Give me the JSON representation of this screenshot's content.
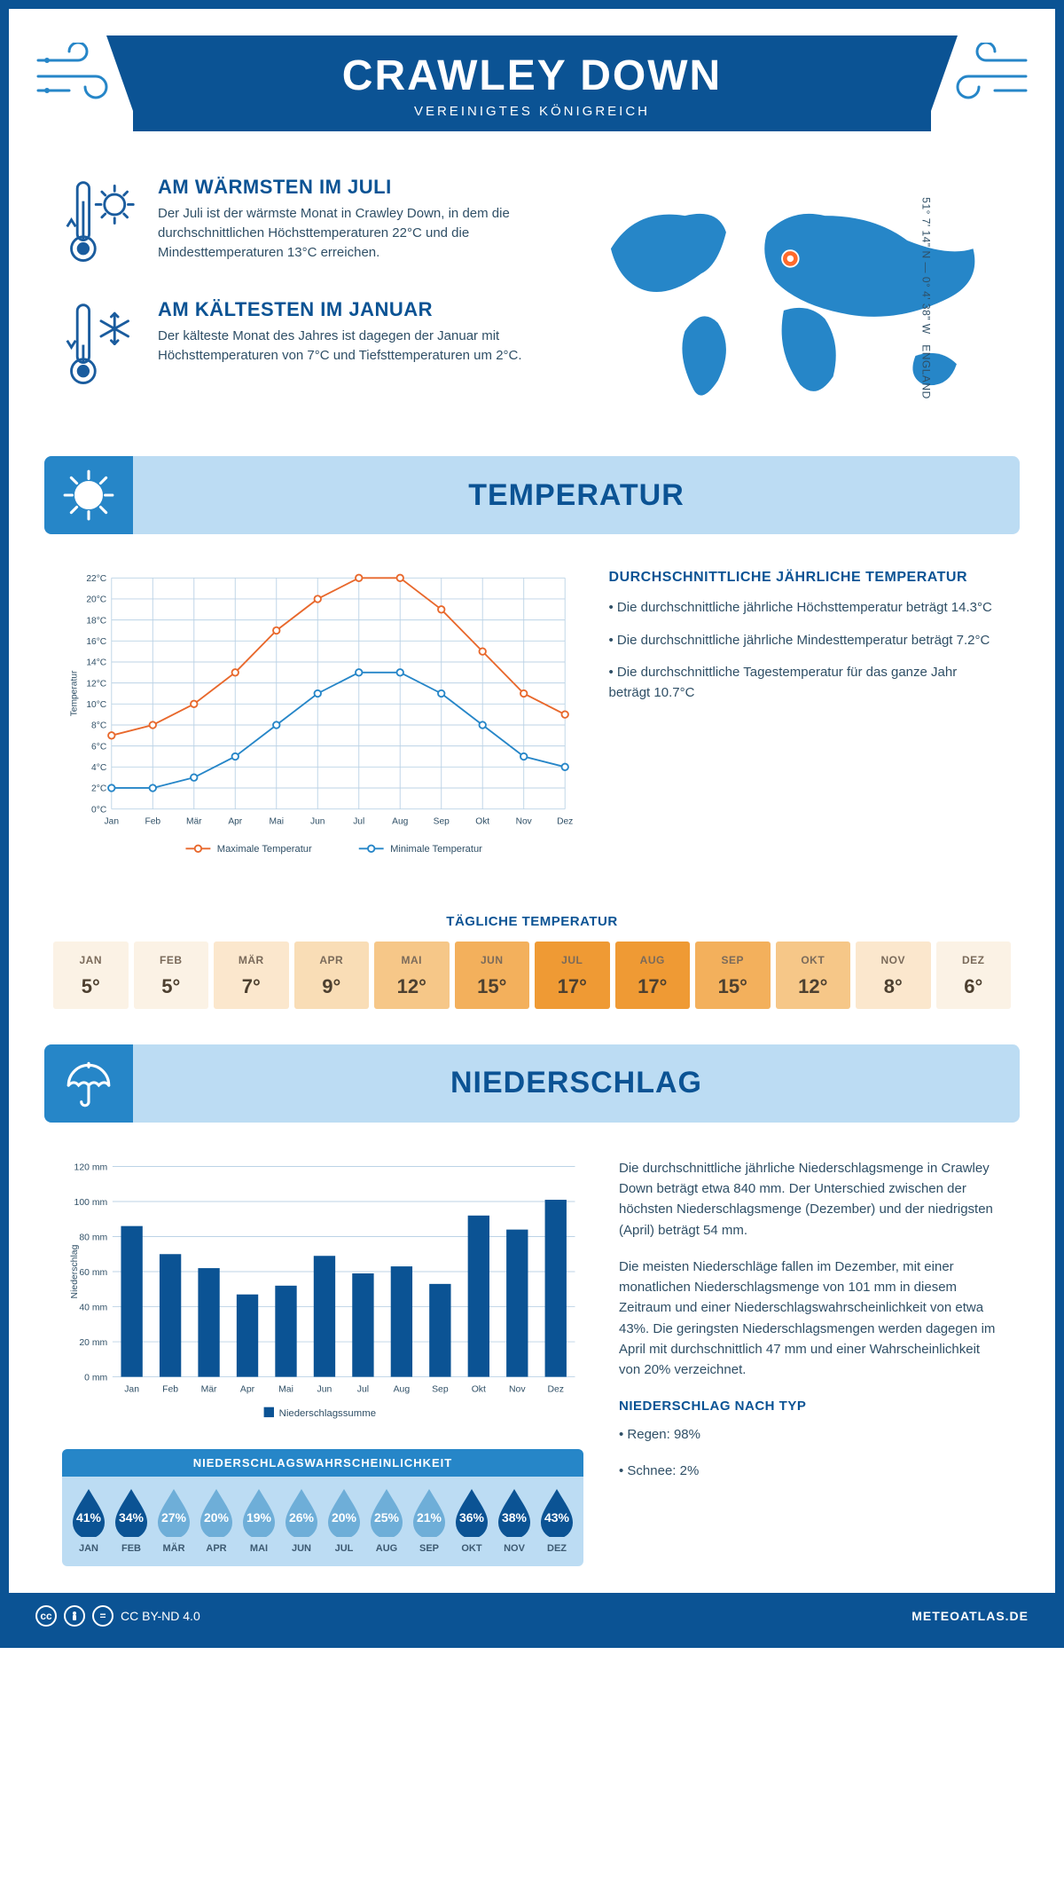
{
  "header": {
    "title": "CRAWLEY DOWN",
    "subtitle": "VEREINIGTES KÖNIGREICH"
  },
  "coords": {
    "lat": "51° 7' 14\" N",
    "lon": "0° 4' 38\" W",
    "region": "ENGLAND"
  },
  "facts": {
    "warm": {
      "title": "AM WÄRMSTEN IM JULI",
      "body": "Der Juli ist der wärmste Monat in Crawley Down, in dem die durchschnittlichen Höchsttemperaturen 22°C und die Mindesttemperaturen 13°C erreichen."
    },
    "cold": {
      "title": "AM KÄLTESTEN IM JANUAR",
      "body": "Der kälteste Monat des Jahres ist dagegen der Januar mit Höchsttemperaturen von 7°C und Tiefsttemperaturen um 2°C."
    }
  },
  "sections": {
    "temperature": "TEMPERATUR",
    "precip": "NIEDERSCHLAG"
  },
  "months_short": [
    "Jan",
    "Feb",
    "Mär",
    "Apr",
    "Mai",
    "Jun",
    "Jul",
    "Aug",
    "Sep",
    "Okt",
    "Nov",
    "Dez"
  ],
  "months_upper": [
    "JAN",
    "FEB",
    "MÄR",
    "APR",
    "MAI",
    "JUN",
    "JUL",
    "AUG",
    "SEP",
    "OKT",
    "NOV",
    "DEZ"
  ],
  "temp_chart": {
    "type": "line",
    "ylabel": "Temperatur",
    "ylim": [
      0,
      22
    ],
    "ytick_step": 2,
    "ytick_suffix": "°C",
    "series": {
      "max": {
        "label": "Maximale Temperatur",
        "color": "#e8682c",
        "values": [
          7,
          8,
          10,
          13,
          17,
          20,
          22,
          22,
          19,
          15,
          11,
          9
        ]
      },
      "min": {
        "label": "Minimale Temperatur",
        "color": "#2686c8",
        "values": [
          2,
          2,
          3,
          5,
          8,
          11,
          13,
          13,
          11,
          8,
          5,
          4
        ]
      }
    },
    "grid_color": "#bcd3e6",
    "marker": "circle",
    "marker_size": 4,
    "line_width": 2
  },
  "temp_text": {
    "heading": "DURCHSCHNITTLICHE JÄHRLICHE TEMPERATUR",
    "bullets": [
      "• Die durchschnittliche jährliche Höchsttemperatur beträgt 14.3°C",
      "• Die durchschnittliche jährliche Mindesttemperatur beträgt 7.2°C",
      "• Die durchschnittliche Tagestemperatur für das ganze Jahr beträgt 10.7°C"
    ]
  },
  "daily": {
    "title": "TÄGLICHE TEMPERATUR",
    "values": [
      5,
      5,
      7,
      9,
      12,
      15,
      17,
      17,
      15,
      12,
      8,
      6
    ],
    "colors": [
      "#fbf2e5",
      "#fbf2e5",
      "#fbe7cd",
      "#f9ddb6",
      "#f6c788",
      "#f3b05c",
      "#ef9a34",
      "#ef9a34",
      "#f3b05c",
      "#f6c788",
      "#fbe7cd",
      "#fbf2e5"
    ]
  },
  "precip_chart": {
    "type": "bar",
    "ylabel": "Niederschlag",
    "ylim": [
      0,
      120
    ],
    "ytick_step": 20,
    "ytick_suffix": " mm",
    "values": [
      86,
      70,
      62,
      47,
      52,
      69,
      59,
      63,
      53,
      92,
      84,
      101
    ],
    "bar_color": "#0b5394",
    "grid_color": "#bcd3e6",
    "legend": "Niederschlagssumme"
  },
  "precip_text": {
    "p1": "Die durchschnittliche jährliche Niederschlagsmenge in Crawley Down beträgt etwa 840 mm. Der Unterschied zwischen der höchsten Niederschlagsmenge (Dezember) und der niedrigsten (April) beträgt 54 mm.",
    "p2": "Die meisten Niederschläge fallen im Dezember, mit einer monatlichen Niederschlagsmenge von 101 mm in diesem Zeitraum und einer Niederschlagswahrscheinlichkeit von etwa 43%. Die geringsten Niederschlagsmengen werden dagegen im April mit durchschnittlich 47 mm und einer Wahrscheinlichkeit von 20% verzeichnet.",
    "type_heading": "NIEDERSCHLAG NACH TYP",
    "type_lines": [
      "• Regen: 98%",
      "• Schnee: 2%"
    ]
  },
  "prob": {
    "title": "NIEDERSCHLAGSWAHRSCHEINLICHKEIT",
    "values": [
      41,
      34,
      27,
      20,
      19,
      26,
      20,
      25,
      21,
      36,
      38,
      43
    ],
    "drop_fill_dark": "#0b5394",
    "drop_fill_light": "#6eaed8",
    "threshold": 30
  },
  "footer": {
    "license": "CC BY-ND 4.0",
    "brand": "METEOATLAS.DE"
  },
  "colors": {
    "brand": "#0b5394",
    "accent": "#2686c8",
    "panel": "#bcdcf3"
  }
}
